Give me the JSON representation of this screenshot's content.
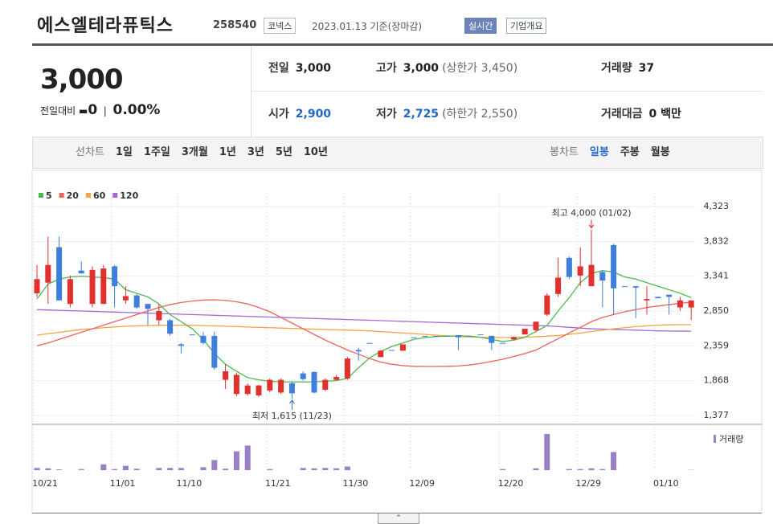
{
  "header": {
    "company": "에스엘테라퓨틱스",
    "code": "258540",
    "market": "코넥스",
    "date_note": "2023.01.13 기준(장마감)",
    "realtime": "실시간",
    "overview": "기업개요"
  },
  "quote": {
    "price": "3,000",
    "change_label": "전일대비",
    "change": "0",
    "change_rate": "0.00%",
    "rows": [
      [
        {
          "label": "전일",
          "value": "3,000"
        },
        {
          "label": "고가",
          "value": "3,000",
          "note": "(상한가 3,450)"
        },
        {
          "label": "거래량",
          "value": "37"
        }
      ],
      [
        {
          "label": "시가",
          "value": "2,900"
        },
        {
          "label": "저가",
          "value": "2,725",
          "note": "(하한가 2,550)"
        },
        {
          "label": "거래대금",
          "value": "0 백만"
        }
      ]
    ]
  },
  "period_tabs": {
    "line_chart": {
      "label": "선차트",
      "options": [
        "1일",
        "1주일",
        "3개월",
        "1년",
        "3년",
        "5년",
        "10년"
      ]
    },
    "candle_chart": {
      "label": "봉차트",
      "options": [
        "일봉",
        "주봉",
        "월봉"
      ]
    }
  },
  "chart_data": {
    "type": "candlestick",
    "categories": [
      "10/21",
      null,
      null,
      null,
      null,
      null,
      null,
      "11/01",
      null,
      null,
      null,
      null,
      null,
      "11/10",
      null,
      null,
      null,
      null,
      null,
      null,
      null,
      "11/21",
      null,
      null,
      null,
      null,
      null,
      null,
      "11/30",
      null,
      null,
      null,
      null,
      null,
      "12/09",
      null,
      null,
      null,
      null,
      null,
      null,
      null,
      "12/20",
      null,
      null,
      null,
      null,
      null,
      null,
      "12/29",
      null,
      null,
      null,
      null,
      null,
      null,
      "01/10",
      null,
      null,
      null
    ],
    "open": [
      3100,
      3250,
      3750,
      2950,
      3420,
      2950,
      2950,
      3480,
      3000,
      3070,
      2950,
      2720,
      2720,
      2380,
      2520,
      2500,
      2500,
      1880,
      1680,
      1680,
      1660,
      1730,
      1700,
      1830,
      1970,
      1990,
      1740,
      1880,
      1900,
      2300,
      2400,
      2200,
      2300,
      2290,
      2480,
      2500,
      2500,
      2500,
      2510,
      2500,
      2520,
      2500,
      2400,
      2450,
      2520,
      2580,
      2800,
      3090,
      3600,
      3350,
      3200,
      3400,
      3780,
      3200,
      3200,
      3000,
      3050,
      3080,
      2900,
      2900
    ],
    "high": [
      3500,
      3900,
      3900,
      3350,
      3550,
      3480,
      3500,
      3500,
      3200,
      3100,
      2950,
      2950,
      2740,
      2400,
      2520,
      2560,
      2560,
      2100,
      1980,
      1830,
      1810,
      1900,
      1900,
      1860,
      2000,
      2000,
      1900,
      1950,
      2200,
      2330,
      2400,
      2300,
      2300,
      2380,
      2480,
      2500,
      2500,
      2500,
      2510,
      2500,
      2520,
      2500,
      2400,
      2490,
      2600,
      2700,
      3100,
      3600,
      3620,
      3750,
      4000,
      3420,
      3800,
      3200,
      3200,
      3200,
      3050,
      3080,
      3050,
      3000
    ],
    "low": [
      3050,
      2950,
      3000,
      2900,
      3380,
      2900,
      2950,
      2900,
      2950,
      2880,
      2650,
      2650,
      2500,
      2250,
      2520,
      2380,
      2020,
      1750,
      1650,
      1660,
      1640,
      1700,
      1680,
      1615,
      1870,
      1690,
      1720,
      1870,
      1880,
      2150,
      2400,
      2200,
      2300,
      2290,
      2480,
      2500,
      2500,
      2500,
      2300,
      2500,
      2520,
      2300,
      2400,
      2440,
      2520,
      2560,
      2780,
      3050,
      3300,
      3200,
      3200,
      2900,
      2800,
      3200,
      2750,
      2800,
      3030,
      2800,
      2850,
      2725
    ],
    "close": [
      3300,
      3500,
      3000,
      3300,
      3380,
      3430,
      3450,
      3200,
      3060,
      2900,
      2880,
      2850,
      2530,
      2360,
      2520,
      2400,
      2050,
      2000,
      1950,
      1800,
      1800,
      1880,
      1880,
      1690,
      1890,
      1700,
      1880,
      1920,
      2180,
      2280,
      2400,
      2290,
      2300,
      2380,
      2480,
      2500,
      2500,
      2500,
      2480,
      2500,
      2520,
      2400,
      2400,
      2480,
      2600,
      2700,
      3070,
      3320,
      3330,
      3480,
      3500,
      3280,
      3170,
      3200,
      3180,
      3020,
      3030,
      3050,
      3000,
      3000
    ],
    "volume": [
      300,
      250,
      100,
      0,
      150,
      0,
      800,
      150,
      600,
      200,
      0,
      300,
      300,
      300,
      0,
      400,
      1400,
      200,
      2600,
      3400,
      0,
      150,
      0,
      0,
      300,
      250,
      300,
      250,
      500,
      0,
      0,
      0,
      0,
      0,
      0,
      0,
      0,
      0,
      0,
      0,
      0,
      0,
      150,
      0,
      0,
      250,
      5000,
      0,
      150,
      150,
      250,
      150,
      2500,
      0,
      0,
      0,
      0,
      0,
      0,
      37
    ],
    "volume_label": "거래량",
    "volume_color": "#9b7fc4",
    "moving_averages": [
      {
        "name": "5",
        "color": "#4cb84c",
        "values": [
          3020,
          3230,
          3300,
          3330,
          3340,
          3330,
          3320,
          3300,
          3150,
          3100,
          3050,
          2950,
          2800,
          2700,
          2600,
          2450,
          2250,
          2100,
          2000,
          1910,
          1880,
          1860,
          1850,
          1850,
          1850,
          1850,
          1860,
          1870,
          1900,
          2050,
          2190,
          2280,
          2350,
          2400,
          2450,
          2476,
          2490,
          2495,
          2500,
          2495,
          2480,
          2450,
          2420,
          2440,
          2480,
          2560,
          2646,
          2850,
          3040,
          3250,
          3380,
          3420,
          3400,
          3330,
          3300,
          3250,
          3200,
          3150,
          3100,
          3040
        ]
      },
      {
        "name": "20",
        "color": "#f0605a",
        "values": [
          2360,
          2400,
          2450,
          2500,
          2550,
          2600,
          2650,
          2700,
          2750,
          2800,
          2850,
          2900,
          2940,
          2970,
          2990,
          3005,
          3009,
          3000,
          2980,
          2950,
          2900,
          2840,
          2760,
          2680,
          2600,
          2520,
          2440,
          2370,
          2300,
          2240,
          2180,
          2130,
          2100,
          2080,
          2070,
          2068,
          2068,
          2070,
          2075,
          2090,
          2110,
          2140,
          2170,
          2210,
          2250,
          2300,
          2380,
          2460,
          2540,
          2620,
          2700,
          2760,
          2800,
          2840,
          2870,
          2900,
          2920,
          2940,
          2960,
          2975
        ]
      },
      {
        "name": "60",
        "color": "#f5a340",
        "values": [
          2510,
          2530,
          2550,
          2570,
          2590,
          2600,
          2615,
          2625,
          2635,
          2640,
          2645,
          2648,
          2650,
          2650,
          2648,
          2645,
          2640,
          2635,
          2630,
          2625,
          2620,
          2615,
          2610,
          2605,
          2600,
          2595,
          2590,
          2585,
          2580,
          2575,
          2570,
          2560,
          2550,
          2540,
          2530,
          2520,
          2510,
          2500,
          2490,
          2485,
          2480,
          2478,
          2476,
          2478,
          2482,
          2488,
          2495,
          2505,
          2520,
          2540,
          2560,
          2580,
          2600,
          2615,
          2630,
          2640,
          2650,
          2655,
          2657,
          2657
        ]
      },
      {
        "name": "120",
        "color": "#a469d6",
        "values": [
          2870,
          2865,
          2860,
          2855,
          2850,
          2845,
          2840,
          2835,
          2830,
          2825,
          2820,
          2815,
          2810,
          2805,
          2800,
          2795,
          2790,
          2785,
          2780,
          2775,
          2770,
          2765,
          2760,
          2755,
          2750,
          2745,
          2740,
          2735,
          2730,
          2725,
          2720,
          2715,
          2710,
          2705,
          2700,
          2695,
          2690,
          2685,
          2680,
          2675,
          2670,
          2665,
          2660,
          2655,
          2650,
          2645,
          2640,
          2630,
          2620,
          2610,
          2600,
          2595,
          2590,
          2585,
          2580,
          2575,
          2570,
          2568,
          2566,
          2565
        ]
      }
    ],
    "up_color": "#e2302e",
    "down_color": "#3d7fdc",
    "high_label": "최고 4,000 (01/02)",
    "low_label": "최저 1,615 (11/23)",
    "ylim": [
      1286,
      4516
    ],
    "yticks": [
      {
        "value": 1377,
        "label": "1,377"
      },
      {
        "value": 1868,
        "label": "1,868"
      },
      {
        "value": 2359,
        "label": "2,359"
      },
      {
        "value": 2850,
        "label": "2,850"
      },
      {
        "value": 3341,
        "label": "3,341"
      },
      {
        "value": 3832,
        "label": "3,832"
      },
      {
        "value": 4323,
        "label": "4,323"
      }
    ],
    "grid": true
  }
}
